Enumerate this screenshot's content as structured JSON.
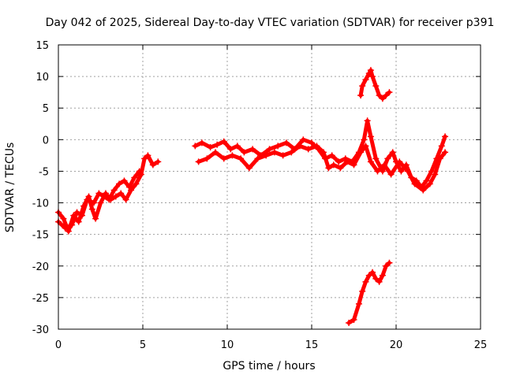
{
  "chart_data": {
    "type": "scatter",
    "title": "Day 042 of 2025, Sidereal Day-to-day VTEC variation (SDTVAR) for receiver p391",
    "xlabel": "GPS time / hours",
    "ylabel": "SDTVAR / TECUs",
    "xlim": [
      0,
      25
    ],
    "ylim": [
      -30,
      15
    ],
    "xticks": [
      "0",
      "5",
      "10",
      "15",
      "20",
      "25"
    ],
    "yticks": [
      "15",
      "10",
      "5",
      "0",
      "-5",
      "-10",
      "-15",
      "-20",
      "-25",
      "-30"
    ],
    "grid": true,
    "marker": "plus",
    "color": "#ff0000",
    "series": [
      {
        "name": "track-1",
        "points": [
          [
            0,
            -11.5
          ],
          [
            0.3,
            -12.5
          ],
          [
            0.6,
            -14.5
          ],
          [
            0.9,
            -12
          ],
          [
            1.2,
            -13
          ],
          [
            1.5,
            -10.5
          ],
          [
            1.8,
            -9
          ],
          [
            2.0,
            -11
          ],
          [
            2.2,
            -12.5
          ],
          [
            2.5,
            -10
          ],
          [
            2.8,
            -8.5
          ],
          [
            3.1,
            -9.5
          ],
          [
            3.4,
            -9
          ],
          [
            3.7,
            -8.5
          ],
          [
            4.0,
            -9.5
          ],
          [
            4.3,
            -8
          ],
          [
            4.6,
            -7
          ],
          [
            4.9,
            -5.5
          ],
          [
            5.1,
            -3
          ],
          [
            5.3,
            -2.5
          ],
          [
            5.6,
            -4
          ],
          [
            5.9,
            -3.5
          ]
        ]
      },
      {
        "name": "track-1b",
        "points": [
          [
            0,
            -13
          ],
          [
            0.4,
            -14
          ],
          [
            0.8,
            -13.5
          ],
          [
            1.1,
            -11.5
          ],
          [
            1.4,
            -12
          ],
          [
            1.7,
            -9.5
          ],
          [
            2.1,
            -10
          ],
          [
            2.4,
            -8.5
          ],
          [
            2.7,
            -9
          ],
          [
            3.0,
            -9.5
          ],
          [
            3.3,
            -8
          ],
          [
            3.6,
            -7
          ],
          [
            3.9,
            -6.5
          ],
          [
            4.2,
            -7.5
          ],
          [
            4.5,
            -6
          ],
          [
            4.8,
            -5
          ]
        ]
      },
      {
        "name": "track-2",
        "points": [
          [
            8.1,
            -1
          ],
          [
            8.5,
            -0.5
          ],
          [
            9.0,
            -1.2
          ],
          [
            9.4,
            -0.8
          ],
          [
            9.8,
            -0.3
          ],
          [
            10.2,
            -1.5
          ],
          [
            10.6,
            -1
          ],
          [
            11.0,
            -2
          ],
          [
            11.5,
            -1.5
          ],
          [
            12.0,
            -2.5
          ],
          [
            12.5,
            -1.5
          ],
          [
            13.0,
            -1
          ],
          [
            13.5,
            -0.5
          ],
          [
            14.0,
            -1.5
          ],
          [
            14.5,
            0
          ],
          [
            15.0,
            -0.5
          ],
          [
            15.4,
            -1.5
          ],
          [
            15.8,
            -3
          ],
          [
            16.2,
            -2.5
          ],
          [
            16.6,
            -3.5
          ],
          [
            17.0,
            -3
          ],
          [
            17.4,
            -3.5
          ],
          [
            17.8,
            -2
          ],
          [
            18.1,
            0
          ],
          [
            18.3,
            3
          ],
          [
            18.5,
            0.5
          ],
          [
            18.8,
            -3
          ],
          [
            19.2,
            -5
          ],
          [
            19.5,
            -3
          ],
          [
            19.8,
            -2
          ],
          [
            20.0,
            -3.5
          ],
          [
            20.3,
            -5
          ],
          [
            20.6,
            -4
          ],
          [
            20.9,
            -6
          ],
          [
            21.2,
            -6.5
          ],
          [
            21.5,
            -7.5
          ],
          [
            21.8,
            -6.5
          ],
          [
            22.1,
            -5
          ],
          [
            22.4,
            -3
          ],
          [
            22.7,
            -1
          ],
          [
            22.9,
            0.5
          ]
        ]
      },
      {
        "name": "track-2b",
        "points": [
          [
            8.3,
            -3.5
          ],
          [
            8.8,
            -3
          ],
          [
            9.3,
            -2
          ],
          [
            9.8,
            -3
          ],
          [
            10.3,
            -2.5
          ],
          [
            10.8,
            -3
          ],
          [
            11.3,
            -4.5
          ],
          [
            11.8,
            -3
          ],
          [
            12.3,
            -2.5
          ],
          [
            12.8,
            -2
          ],
          [
            13.3,
            -2.5
          ],
          [
            13.8,
            -2
          ],
          [
            14.3,
            -1
          ],
          [
            14.8,
            -1.5
          ],
          [
            15.3,
            -1
          ],
          [
            15.7,
            -2
          ],
          [
            16.0,
            -4.5
          ],
          [
            16.3,
            -4
          ],
          [
            16.7,
            -4.5
          ],
          [
            17.1,
            -3.5
          ],
          [
            17.5,
            -4
          ],
          [
            17.9,
            -2
          ],
          [
            18.2,
            -1
          ],
          [
            18.5,
            -3.5
          ],
          [
            18.9,
            -5
          ],
          [
            19.3,
            -4
          ],
          [
            19.7,
            -5.5
          ],
          [
            20.2,
            -3.5
          ],
          [
            20.7,
            -5
          ],
          [
            21.1,
            -7
          ],
          [
            21.6,
            -8
          ],
          [
            22.0,
            -7
          ],
          [
            22.3,
            -5.5
          ],
          [
            22.6,
            -3
          ],
          [
            22.9,
            -2
          ]
        ]
      },
      {
        "name": "track-3",
        "points": [
          [
            17.9,
            7
          ],
          [
            18.0,
            8.5
          ],
          [
            18.2,
            9.5
          ],
          [
            18.4,
            10.5
          ],
          [
            18.5,
            11
          ],
          [
            18.6,
            10
          ],
          [
            18.8,
            8.5
          ],
          [
            19.0,
            7
          ],
          [
            19.2,
            6.5
          ],
          [
            19.4,
            7
          ],
          [
            19.6,
            7.5
          ]
        ]
      },
      {
        "name": "track-4",
        "points": [
          [
            17.2,
            -29
          ],
          [
            17.5,
            -28.5
          ],
          [
            17.8,
            -26
          ],
          [
            18.0,
            -24
          ],
          [
            18.2,
            -22.5
          ],
          [
            18.4,
            -21.5
          ],
          [
            18.6,
            -21
          ],
          [
            18.8,
            -22
          ],
          [
            19.0,
            -22.5
          ],
          [
            19.2,
            -21.5
          ],
          [
            19.4,
            -20
          ],
          [
            19.6,
            -19.5
          ]
        ]
      }
    ]
  }
}
